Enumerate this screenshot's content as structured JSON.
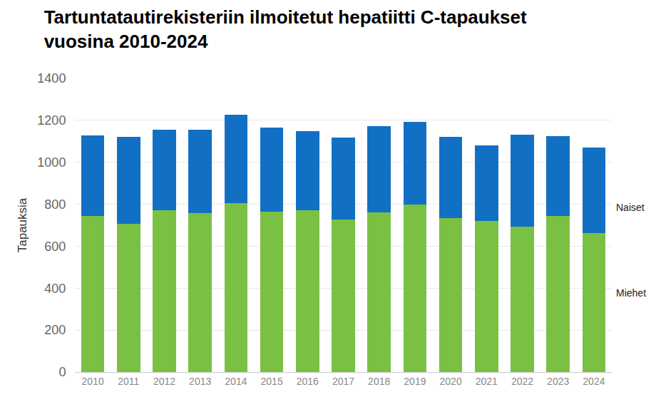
{
  "chart_data": {
    "type": "bar",
    "stacked": true,
    "title": "Tartuntatautirekisteriin ilmoitetut hepatiitti C-tapaukset vuosina 2010-2024",
    "y_label": "Tapauksia",
    "categories": [
      "2010",
      "2011",
      "2012",
      "2013",
      "2014",
      "2015",
      "2016",
      "2017",
      "2018",
      "2019",
      "2020",
      "2021",
      "2022",
      "2023",
      "2024"
    ],
    "series": [
      {
        "name": "Miehet",
        "color": "#7ac143",
        "values": [
          745,
          707,
          770,
          758,
          805,
          765,
          772,
          727,
          762,
          800,
          733,
          720,
          693,
          743,
          662
        ]
      },
      {
        "name": "Naiset",
        "color": "#1170c4",
        "values": [
          383,
          415,
          387,
          399,
          423,
          402,
          376,
          390,
          411,
          393,
          387,
          362,
          437,
          382,
          408
        ]
      }
    ],
    "ylim": [
      0,
      1400
    ],
    "yticks": [
      0,
      200,
      400,
      600,
      800,
      1000,
      1200,
      1400
    ],
    "grid": true
  }
}
